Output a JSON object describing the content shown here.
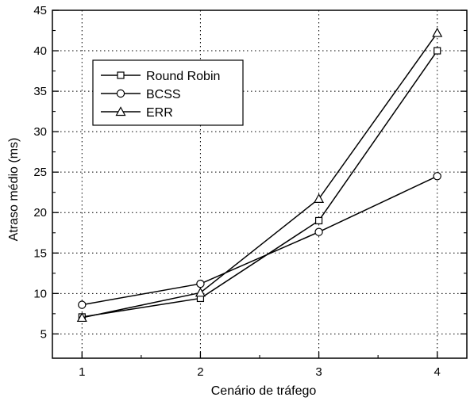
{
  "chart_data": {
    "type": "line",
    "x": [
      1,
      2,
      3,
      4
    ],
    "series": [
      {
        "name": "Round Robin",
        "marker": "square",
        "values": [
          7.1,
          9.4,
          19.0,
          40.0
        ]
      },
      {
        "name": "BCSS",
        "marker": "circle",
        "values": [
          8.6,
          11.2,
          17.6,
          24.5
        ]
      },
      {
        "name": "ERR",
        "marker": "triangle",
        "values": [
          7.0,
          10.1,
          21.7,
          42.2
        ]
      }
    ],
    "xlabel": "Cenário de tráfego",
    "ylabel": "Atraso médio (ms)",
    "xlim": [
      0.75,
      4.25
    ],
    "ylim": [
      2,
      45
    ],
    "xticks": [
      1,
      2,
      3,
      4
    ],
    "yticks": [
      5,
      10,
      15,
      20,
      25,
      30,
      35,
      40,
      45
    ],
    "grid": true,
    "grid_style": "dotted",
    "legend_position": "top-left",
    "colors": {
      "line": "#000000",
      "grid": "#000000",
      "background": "#ffffff"
    }
  }
}
